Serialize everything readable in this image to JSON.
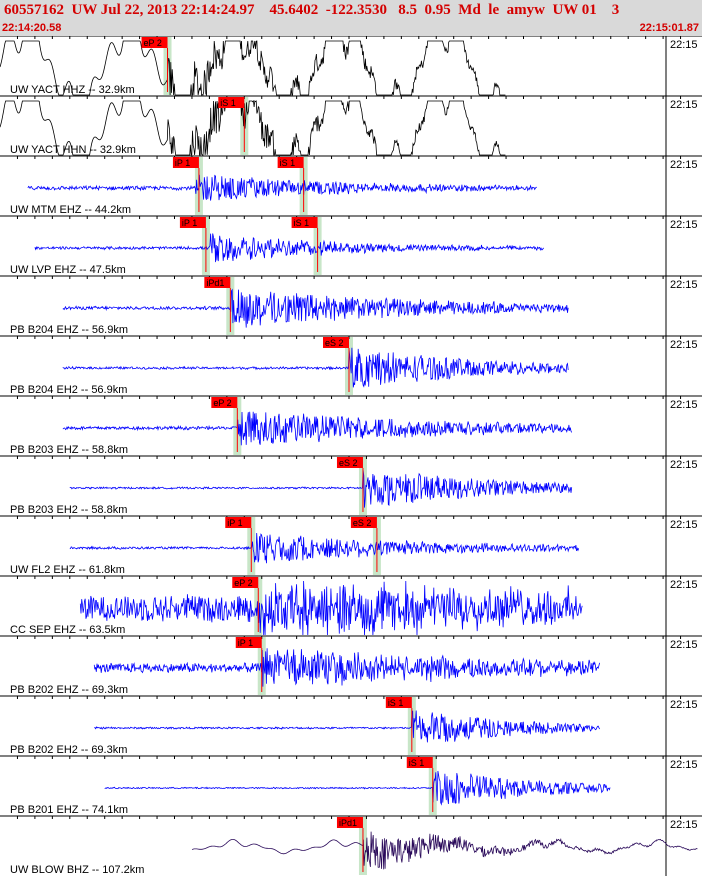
{
  "header": {
    "title": "60557162  UW Jul 22, 2013 22:14:24.97    45.6402  -122.3530   8.5  0.95  Md  le  amyw  UW 01    3",
    "start_time": "22:14:20.58",
    "end_time": "22:15:01.87"
  },
  "colors": {
    "blue_trace": "#0000ff",
    "black_trace": "#000000",
    "purple_trace": "#2a0a5a",
    "pick_box": "#ff0000",
    "pick_window": "#c8e6c8",
    "grid_tick": "#000000",
    "header_bg": "#d9d9d9",
    "header_text": "#d40000"
  },
  "chart_data": {
    "type": "seismogram",
    "time_range": [
      "22:14:20.58",
      "22:15:01.87"
    ],
    "tick_label": "22:15",
    "traces": [
      {
        "label": "UW YACT HHZ -- 32.9km",
        "color": "black",
        "start": 0.0,
        "end": 0.725,
        "noise": 0.12,
        "onset": 0.24,
        "amp": 0.85,
        "decay": 0.25,
        "osc": 6,
        "picks": [
          {
            "label": "eP 2",
            "time": 0.24
          }
        ]
      },
      {
        "label": "UW YACT HHN -- 32.9km",
        "color": "black",
        "start": 0.0,
        "end": 0.725,
        "noise": 0.1,
        "onset": 0.24,
        "amp": 0.9,
        "decay": 0.22,
        "osc": 6,
        "picks": [
          {
            "label": "iS 1",
            "time": 0.35
          }
        ]
      },
      {
        "label": "UW MTM EHZ -- 44.2km",
        "color": "blue",
        "start": 0.04,
        "end": 0.77,
        "noise": 0.08,
        "onset": 0.28,
        "amp": 0.55,
        "decay": 0.2,
        "osc": 0,
        "picks": [
          {
            "label": "iP 1",
            "time": 0.285
          },
          {
            "label": "iS 1",
            "time": 0.435
          }
        ]
      },
      {
        "label": "UW LVP EHZ -- 47.5km",
        "color": "blue",
        "start": 0.05,
        "end": 0.78,
        "noise": 0.06,
        "onset": 0.3,
        "amp": 0.6,
        "decay": 0.18,
        "osc": 0,
        "picks": [
          {
            "label": "iP 1",
            "time": 0.295
          },
          {
            "label": "iS 1",
            "time": 0.455
          }
        ]
      },
      {
        "label": "PB B204 EHZ -- 56.9km",
        "color": "blue",
        "start": 0.09,
        "end": 0.815,
        "noise": 0.07,
        "onset": 0.33,
        "amp": 0.75,
        "decay": 0.28,
        "osc": 0,
        "picks": [
          {
            "label": "iPd1",
            "time": 0.33
          }
        ]
      },
      {
        "label": "PB B204 EH2 -- 56.9km",
        "color": "blue",
        "start": 0.09,
        "end": 0.815,
        "noise": 0.05,
        "onset": 0.5,
        "amp": 0.8,
        "decay": 0.2,
        "osc": 0,
        "picks": [
          {
            "label": "eS 2",
            "time": 0.5
          }
        ]
      },
      {
        "label": "PB B203 EHZ -- 58.8km",
        "color": "blue",
        "start": 0.09,
        "end": 0.82,
        "noise": 0.07,
        "onset": 0.34,
        "amp": 0.75,
        "decay": 0.28,
        "osc": 0,
        "picks": [
          {
            "label": "eP 2",
            "time": 0.34
          }
        ]
      },
      {
        "label": "PB B203 EH2 -- 58.8km",
        "color": "blue",
        "start": 0.1,
        "end": 0.82,
        "noise": 0.04,
        "onset": 0.52,
        "amp": 0.75,
        "decay": 0.2,
        "osc": 0,
        "picks": [
          {
            "label": "eS 2",
            "time": 0.52
          }
        ]
      },
      {
        "label": "UW FL2 EHZ -- 61.8km",
        "color": "blue",
        "start": 0.1,
        "end": 0.83,
        "noise": 0.05,
        "onset": 0.36,
        "amp": 0.6,
        "decay": 0.25,
        "osc": 0,
        "picks": [
          {
            "label": "iP 1",
            "time": 0.36
          },
          {
            "label": "eS 2",
            "time": 0.54
          }
        ]
      },
      {
        "label": "CC SEP EHZ -- 63.5km",
        "color": "blue",
        "start": 0.115,
        "end": 0.835,
        "noise": 0.55,
        "onset": 0.37,
        "amp": 0.9,
        "decay": 0.5,
        "osc": 0,
        "picks": [
          {
            "label": "eP 2",
            "time": 0.37
          }
        ]
      },
      {
        "label": "PB B202 EHZ -- 69.3km",
        "color": "blue",
        "start": 0.135,
        "end": 0.86,
        "noise": 0.2,
        "onset": 0.375,
        "amp": 0.7,
        "decay": 0.35,
        "osc": 0,
        "picks": [
          {
            "label": "iP 1",
            "time": 0.375
          }
        ]
      },
      {
        "label": "PB B202 EH2 -- 69.3km",
        "color": "blue",
        "start": 0.135,
        "end": 0.86,
        "noise": 0.04,
        "onset": 0.59,
        "amp": 0.75,
        "decay": 0.15,
        "osc": 0,
        "picks": [
          {
            "label": "iS 1",
            "time": 0.59
          }
        ]
      },
      {
        "label": "PB B201 EHZ -- 74.1km",
        "color": "blue",
        "start": 0.15,
        "end": 0.875,
        "noise": 0.03,
        "onset": 0.62,
        "amp": 0.75,
        "decay": 0.15,
        "osc": 0,
        "picks": [
          {
            "label": "iS 1",
            "time": 0.62
          }
        ]
      },
      {
        "label": "UW BLOW BHZ -- 107.2km",
        "color": "purple",
        "start": 0.275,
        "end": 1.0,
        "noise": 0.1,
        "onset": 0.52,
        "amp": 0.8,
        "decay": 0.12,
        "osc": 0.55,
        "picks": [
          {
            "label": "iPd1",
            "time": 0.52
          }
        ]
      }
    ]
  }
}
